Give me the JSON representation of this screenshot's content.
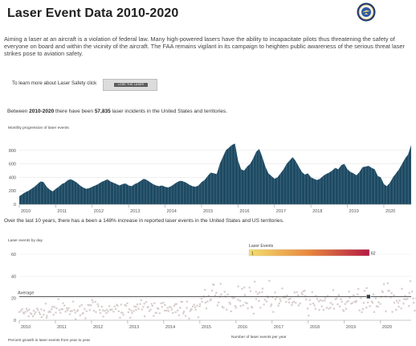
{
  "page": {
    "title": "Laser Event Data 2010-2020",
    "intro": "Aiming a laser at an aircraft is a violation of federal law. Many high-powered lasers have the ability to incapacitate pilots thus threatening the safety of everyone on board and within the vicinity of the aircraft. The FAA remains vigilant in its campaign to heighten public awareness of the serious threat laser strikes pose to aviation safety.",
    "learn_prefix": "To learn more about Laser Safety click",
    "learn_button": "LOSE THE LASER",
    "summary_before": "Between ",
    "summary_years": "2010-2020",
    "summary_middle": " there have been ",
    "summary_total": "57,835",
    "summary_after": " laser incidents in the United States and territories.",
    "growth_text": "Over the last 10 years, there has a been a 148% increase in reported laser events in the United States and US territories.",
    "bottom_left_label": "Percent growth in laser events from year to year",
    "bottom_mid_label": "Number of laser events per year"
  },
  "colors": {
    "area_fill": "#1d4a63",
    "dot": "#d7cdcd",
    "average_line": "#4d4d4d",
    "legend_low": "#f4dd6e",
    "legend_mid": "#e8873e",
    "legend_high": "#b51a44"
  },
  "chart_data": [
    {
      "type": "area",
      "title": "Monthly progression of laser events",
      "ylim": [
        0,
        1000
      ],
      "yticks": [
        0,
        200,
        400,
        600,
        800
      ],
      "xticks": [
        "2010",
        "2011",
        "2012",
        "2013",
        "2014",
        "2015",
        "2016",
        "2017",
        "2018",
        "2019",
        "2020"
      ],
      "x_start": "2010-01",
      "x_end": "2020-10",
      "series": [
        {
          "values": [
            120,
            150,
            180,
            200,
            230,
            260,
            300,
            340,
            330,
            260,
            220,
            190,
            230,
            260,
            300,
            320,
            360,
            370,
            350,
            320,
            280,
            250,
            230,
            240,
            260,
            280,
            300,
            330,
            350,
            370,
            340,
            320,
            300,
            280,
            300,
            310,
            280,
            270,
            300,
            320,
            350,
            380,
            360,
            330,
            300,
            280,
            270,
            280,
            260,
            250,
            270,
            300,
            330,
            350,
            340,
            320,
            290,
            270,
            260,
            280,
            330,
            360,
            420,
            470,
            460,
            450,
            600,
            700,
            800,
            840,
            880,
            900,
            650,
            520,
            500,
            560,
            600,
            680,
            780,
            820,
            700,
            560,
            460,
            420,
            380,
            400,
            460,
            520,
            600,
            650,
            700,
            640,
            560,
            480,
            440,
            460,
            400,
            380,
            360,
            380,
            420,
            450,
            470,
            500,
            540,
            520,
            580,
            600,
            520,
            480,
            460,
            430,
            480,
            550,
            560,
            570,
            540,
            520,
            420,
            400,
            300,
            270,
            320,
            400,
            460,
            520,
            600,
            680,
            740,
            880
          ]
        }
      ]
    },
    {
      "type": "scatter",
      "title": "Laser events by day",
      "ylim": [
        0,
        60
      ],
      "yticks": [
        0,
        20,
        40,
        60
      ],
      "xticks": [
        "2010",
        "2011",
        "2012",
        "2013",
        "2014",
        "2015",
        "2016",
        "2017",
        "2018",
        "2019",
        "2020"
      ],
      "average_label": "Average",
      "average_value": 21.5,
      "highlight": {
        "x": "2019-09",
        "y": 21.5
      },
      "legend": {
        "title": "Laser Events",
        "min": "1",
        "max": "62"
      },
      "daily_trend_by_year": [
        {
          "year": "2010",
          "mean": 8,
          "spread": 6
        },
        {
          "year": "2011",
          "mean": 10,
          "spread": 7
        },
        {
          "year": "2012",
          "mean": 10,
          "spread": 7
        },
        {
          "year": "2013",
          "mean": 11,
          "spread": 7
        },
        {
          "year": "2014",
          "mean": 10,
          "spread": 7
        },
        {
          "year": "2015",
          "mean": 20,
          "spread": 11
        },
        {
          "year": "2016",
          "mean": 21,
          "spread": 12
        },
        {
          "year": "2017",
          "mean": 18,
          "spread": 10
        },
        {
          "year": "2018",
          "mean": 16,
          "spread": 10
        },
        {
          "year": "2019",
          "mean": 17,
          "spread": 10
        },
        {
          "year": "2020",
          "mean": 20,
          "spread": 12
        }
      ]
    }
  ]
}
